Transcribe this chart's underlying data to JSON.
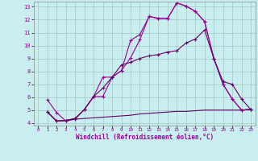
{
  "xlabel": "Windchill (Refroidissement éolien,°C)",
  "background_color": "#c8eef0",
  "grid_color": "#a0c8c0",
  "line_color1": "#990099",
  "line_color2": "#990099",
  "line_color3": "#660066",
  "line_color4": "#660066",
  "xlim": [
    -0.5,
    23.5
  ],
  "ylim": [
    3.8,
    13.4
  ],
  "yticks": [
    4,
    5,
    6,
    7,
    8,
    9,
    10,
    11,
    12,
    13
  ],
  "xticks": [
    0,
    1,
    2,
    3,
    4,
    5,
    6,
    7,
    8,
    9,
    10,
    11,
    12,
    13,
    14,
    15,
    16,
    17,
    18,
    19,
    20,
    21,
    22,
    23
  ],
  "line1_x": [
    1,
    2,
    3,
    4,
    5,
    6,
    7,
    8,
    9,
    10,
    11,
    12,
    13,
    14,
    15,
    16,
    17,
    18,
    19,
    20,
    21,
    22,
    23
  ],
  "line1_y": [
    5.8,
    4.8,
    4.15,
    4.3,
    5.05,
    6.05,
    7.55,
    7.55,
    8.05,
    10.4,
    10.85,
    12.25,
    12.1,
    12.1,
    13.3,
    13.05,
    12.65,
    11.85,
    9.0,
    7.0,
    5.85,
    5.0,
    5.05
  ],
  "line2_x": [
    1,
    2,
    3,
    4,
    5,
    6,
    7,
    8,
    9,
    10,
    11,
    12,
    13,
    14,
    15,
    16,
    17,
    18,
    19,
    20,
    21,
    22,
    23
  ],
  "line2_y": [
    4.85,
    4.15,
    4.2,
    4.35,
    5.05,
    6.05,
    6.05,
    7.55,
    8.05,
    9.05,
    10.45,
    12.25,
    12.1,
    12.1,
    13.3,
    13.05,
    12.65,
    11.85,
    9.0,
    7.0,
    5.85,
    5.0,
    5.05
  ],
  "line3_x": [
    1,
    2,
    3,
    4,
    5,
    6,
    7,
    8,
    9,
    10,
    11,
    12,
    13,
    14,
    15,
    16,
    17,
    18,
    19,
    20,
    21,
    22,
    23
  ],
  "line3_y": [
    4.85,
    4.15,
    4.2,
    4.35,
    5.05,
    6.05,
    6.7,
    7.55,
    8.5,
    8.7,
    9.0,
    9.2,
    9.3,
    9.5,
    9.6,
    10.2,
    10.5,
    11.2,
    9.0,
    7.2,
    7.0,
    5.85,
    5.05
  ],
  "line4_x": [
    1,
    2,
    3,
    4,
    5,
    6,
    7,
    8,
    9,
    10,
    11,
    12,
    13,
    14,
    15,
    16,
    17,
    18,
    19,
    20,
    21,
    22,
    23
  ],
  "line4_y": [
    4.85,
    4.15,
    4.2,
    4.3,
    4.35,
    4.4,
    4.45,
    4.5,
    4.55,
    4.6,
    4.7,
    4.75,
    4.8,
    4.85,
    4.9,
    4.9,
    4.95,
    5.0,
    5.0,
    5.0,
    5.0,
    5.0,
    5.05
  ]
}
